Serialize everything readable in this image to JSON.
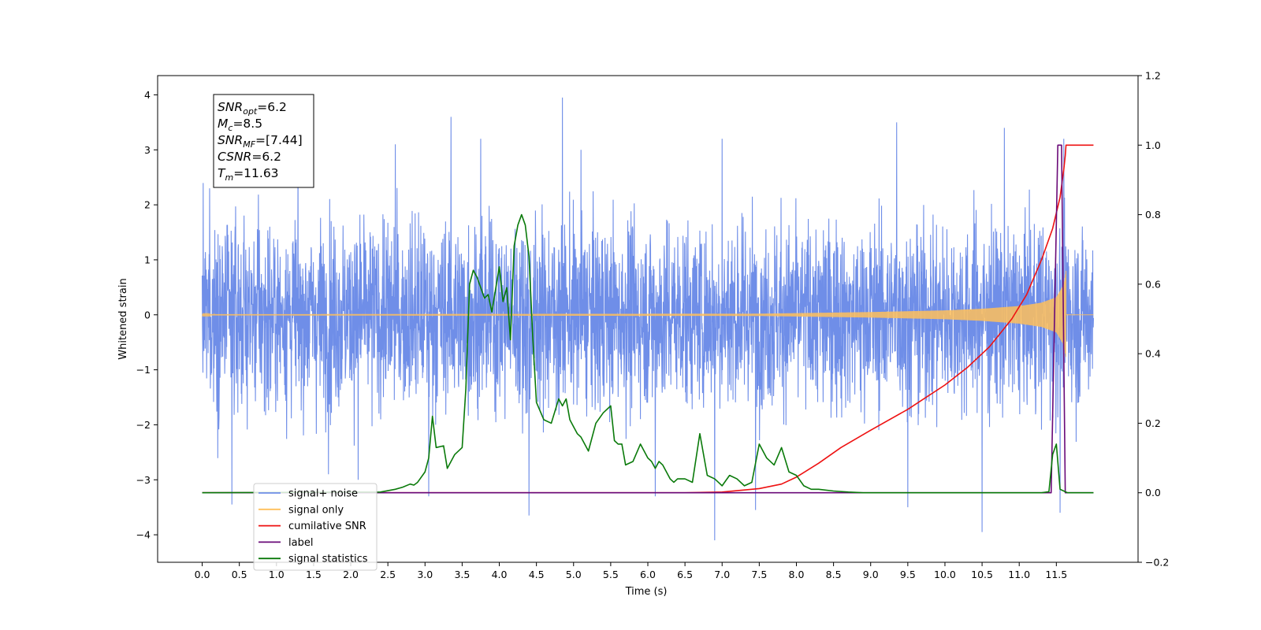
{
  "chart_data": {
    "type": "line",
    "xlabel": "Time (s)",
    "ylabel": "Whitened strain",
    "xlim": [
      -0.6,
      12.6
    ],
    "ylim": [
      -4.5,
      4.35
    ],
    "y2lim": [
      -0.2,
      1.2
    ],
    "x_ticks": [
      "0.0",
      "0.5",
      "1.0",
      "1.5",
      "2.0",
      "2.5",
      "3.0",
      "3.5",
      "4.0",
      "4.5",
      "5.0",
      "5.5",
      "6.0",
      "6.5",
      "7.0",
      "7.5",
      "8.0",
      "8.5",
      "9.0",
      "9.5",
      "10.0",
      "10.5",
      "11.0",
      "11.5"
    ],
    "y_ticks": [
      "4",
      "3",
      "2",
      "1",
      "0",
      "−1",
      "−2",
      "−3",
      "−4"
    ],
    "y2_ticks": [
      "1.2",
      "1.0",
      "0.8",
      "0.6",
      "0.4",
      "0.2",
      "0.0",
      "−0.2"
    ],
    "grid": false,
    "legend_position": "bottom-left",
    "annotation_box": {
      "position": "top-left",
      "lines": [
        {
          "label": "SNR",
          "sub": "opt",
          "value": "=6.2"
        },
        {
          "label": "M",
          "sub": "c",
          "value": "=8.5"
        },
        {
          "label": "SNR",
          "sub": "MF",
          "value": "=[7.44]"
        },
        {
          "label": "CSNR",
          "sub": "",
          "value": "=6.2"
        },
        {
          "label": "T",
          "sub": "m",
          "value": "=11.63"
        }
      ]
    },
    "series": [
      {
        "name": "signal+ noise",
        "color": "#6f8ee8",
        "axis": "left",
        "description_stats": {
          "mean": 0.0,
          "std": 1.05
        },
        "x_range": [
          0.0,
          12.0
        ],
        "notable_peaks": [
          [
            0.1,
            2.3
          ],
          [
            2.6,
            3.1
          ],
          [
            3.35,
            3.6
          ],
          [
            3.75,
            3.2
          ],
          [
            4.85,
            3.95
          ],
          [
            5.1,
            3.0
          ],
          [
            7.0,
            3.2
          ],
          [
            9.35,
            3.5
          ],
          [
            10.8,
            3.4
          ],
          [
            11.6,
            3.2
          ]
        ],
        "notable_troughs": [
          [
            0.4,
            -3.45
          ],
          [
            1.7,
            -2.9
          ],
          [
            2.1,
            -3.0
          ],
          [
            3.05,
            -3.3
          ],
          [
            4.4,
            -3.65
          ],
          [
            6.1,
            -3.3
          ],
          [
            6.9,
            -4.1
          ],
          [
            7.45,
            -3.55
          ],
          [
            9.5,
            -3.5
          ],
          [
            10.5,
            -3.95
          ],
          [
            11.55,
            -3.6
          ]
        ]
      },
      {
        "name": "signal only",
        "color": "#ffbf5a",
        "axis": "left",
        "envelope": {
          "x": [
            0.0,
            7.5,
            8.0,
            9.0,
            10.0,
            10.5,
            11.0,
            11.3,
            11.5,
            11.6,
            11.63
          ],
          "amplitude": [
            0.01,
            0.02,
            0.03,
            0.05,
            0.08,
            0.11,
            0.16,
            0.22,
            0.32,
            0.55,
            0.8
          ]
        }
      },
      {
        "name": "cumilative SNR",
        "color": "#ee1111",
        "axis": "right",
        "x": [
          0.0,
          6.5,
          7.0,
          7.5,
          7.8,
          8.0,
          8.3,
          8.6,
          9.0,
          9.5,
          10.0,
          10.3,
          10.6,
          10.9,
          11.1,
          11.3,
          11.45,
          11.55,
          11.6,
          11.62,
          11.63,
          12.0
        ],
        "values": [
          0.0,
          0.0,
          0.002,
          0.012,
          0.025,
          0.045,
          0.085,
          0.13,
          0.18,
          0.24,
          0.31,
          0.36,
          0.42,
          0.5,
          0.57,
          0.67,
          0.76,
          0.85,
          0.93,
          0.97,
          1.0,
          1.0
        ]
      },
      {
        "name": "label",
        "color": "#6a0a78",
        "axis": "right",
        "x": [
          0.0,
          11.43,
          11.52,
          11.57,
          11.62,
          12.0
        ],
        "values": [
          0.0,
          0.0,
          1.0,
          1.0,
          0.0,
          0.0
        ]
      },
      {
        "name": "signal statistics",
        "color": "#0a7a0a",
        "axis": "right",
        "x": [
          0.0,
          2.4,
          2.5,
          2.6,
          2.7,
          2.8,
          2.85,
          2.9,
          3.0,
          3.05,
          3.1,
          3.15,
          3.25,
          3.3,
          3.4,
          3.5,
          3.55,
          3.6,
          3.65,
          3.7,
          3.8,
          3.85,
          3.9,
          4.0,
          4.05,
          4.1,
          4.15,
          4.2,
          4.25,
          4.3,
          4.35,
          4.4,
          4.45,
          4.5,
          4.6,
          4.7,
          4.8,
          4.85,
          4.9,
          4.95,
          5.0,
          5.05,
          5.1,
          5.2,
          5.3,
          5.4,
          5.5,
          5.55,
          5.6,
          5.65,
          5.7,
          5.8,
          5.9,
          6.0,
          6.05,
          6.1,
          6.15,
          6.2,
          6.3,
          6.35,
          6.4,
          6.5,
          6.6,
          6.7,
          6.8,
          6.9,
          6.95,
          7.0,
          7.1,
          7.2,
          7.3,
          7.4,
          7.5,
          7.6,
          7.7,
          7.8,
          7.9,
          8.0,
          8.1,
          8.2,
          8.3,
          8.5,
          8.7,
          8.9,
          9.0,
          10.5,
          11.0,
          11.3,
          11.4,
          11.45,
          11.5,
          11.55,
          11.6,
          11.65,
          11.7,
          11.8,
          11.9,
          12.0
        ],
        "values": [
          0.0,
          0.002,
          0.006,
          0.01,
          0.016,
          0.025,
          0.022,
          0.03,
          0.06,
          0.1,
          0.22,
          0.13,
          0.135,
          0.07,
          0.11,
          0.13,
          0.3,
          0.6,
          0.64,
          0.62,
          0.56,
          0.57,
          0.52,
          0.65,
          0.55,
          0.59,
          0.44,
          0.71,
          0.77,
          0.8,
          0.77,
          0.68,
          0.45,
          0.26,
          0.21,
          0.2,
          0.27,
          0.25,
          0.27,
          0.21,
          0.19,
          0.17,
          0.16,
          0.12,
          0.2,
          0.23,
          0.25,
          0.15,
          0.14,
          0.14,
          0.08,
          0.09,
          0.14,
          0.1,
          0.09,
          0.07,
          0.09,
          0.08,
          0.04,
          0.03,
          0.04,
          0.04,
          0.03,
          0.17,
          0.05,
          0.04,
          0.03,
          0.02,
          0.05,
          0.04,
          0.02,
          0.03,
          0.14,
          0.1,
          0.08,
          0.13,
          0.06,
          0.05,
          0.02,
          0.01,
          0.01,
          0.005,
          0.002,
          0.0,
          0.0,
          0.0,
          0.0,
          0.0,
          0.003,
          0.11,
          0.14,
          0.01,
          0.005,
          0.0,
          0.0,
          0.0,
          0.0,
          0.0
        ]
      }
    ]
  }
}
